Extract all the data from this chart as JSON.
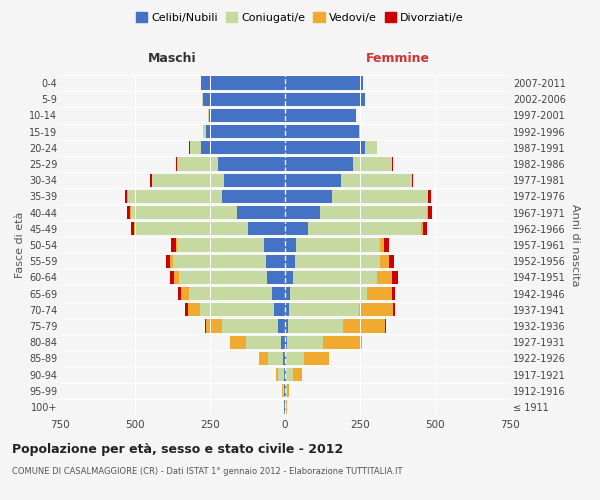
{
  "age_groups": [
    "100+",
    "95-99",
    "90-94",
    "85-89",
    "80-84",
    "75-79",
    "70-74",
    "65-69",
    "60-64",
    "55-59",
    "50-54",
    "45-49",
    "40-44",
    "35-39",
    "30-34",
    "25-29",
    "20-24",
    "15-19",
    "10-14",
    "5-9",
    "0-4"
  ],
  "birth_years": [
    "≤ 1911",
    "1912-1916",
    "1917-1921",
    "1922-1926",
    "1927-1931",
    "1932-1936",
    "1937-1941",
    "1942-1946",
    "1947-1951",
    "1952-1956",
    "1957-1961",
    "1962-1966",
    "1967-1971",
    "1972-1976",
    "1977-1981",
    "1982-1986",
    "1987-1991",
    "1992-1996",
    "1997-2001",
    "2002-2006",
    "2007-2011"
  ],
  "male_celibi": [
    2,
    3,
    5,
    8,
    15,
    25,
    38,
    45,
    60,
    65,
    70,
    125,
    160,
    210,
    205,
    225,
    280,
    265,
    255,
    275,
    280
  ],
  "male_coniugati": [
    2,
    5,
    18,
    50,
    115,
    185,
    245,
    275,
    295,
    310,
    290,
    375,
    355,
    315,
    240,
    135,
    38,
    8,
    2,
    1,
    1
  ],
  "male_vedovi": [
    0,
    2,
    8,
    28,
    52,
    52,
    42,
    28,
    14,
    8,
    5,
    3,
    2,
    1,
    0,
    0,
    0,
    0,
    0,
    0,
    0
  ],
  "male_divorziati": [
    0,
    0,
    0,
    0,
    0,
    5,
    8,
    8,
    14,
    14,
    14,
    12,
    10,
    7,
    5,
    3,
    1,
    0,
    0,
    0,
    0
  ],
  "female_celibi": [
    1,
    2,
    3,
    4,
    7,
    9,
    13,
    18,
    28,
    33,
    38,
    78,
    118,
    155,
    185,
    225,
    265,
    245,
    235,
    265,
    260
  ],
  "female_coniugati": [
    1,
    4,
    22,
    58,
    120,
    185,
    235,
    255,
    278,
    285,
    278,
    375,
    355,
    320,
    238,
    132,
    42,
    8,
    2,
    1,
    1
  ],
  "female_vedovi": [
    3,
    8,
    33,
    85,
    128,
    138,
    112,
    84,
    52,
    28,
    14,
    8,
    5,
    3,
    1,
    0,
    0,
    0,
    0,
    0,
    0
  ],
  "female_divorziati": [
    0,
    0,
    0,
    0,
    2,
    4,
    8,
    10,
    18,
    18,
    18,
    14,
    11,
    7,
    4,
    2,
    1,
    0,
    0,
    0,
    0
  ],
  "colors": {
    "celibi": "#4472C4",
    "coniugati": "#c5d9a0",
    "vedovi": "#f0aa30",
    "divorziati": "#cc0000"
  },
  "xlim": 750,
  "title": "Popolazione per età, sesso e stato civile - 2012",
  "subtitle": "COMUNE DI CASALMAGGIORE (CR) - Dati ISTAT 1° gennaio 2012 - Elaborazione TUTTITALIA.IT",
  "ylabel_left": "Fasce di età",
  "ylabel_right": "Anni di nascita",
  "xlabel_left": "Maschi",
  "xlabel_right": "Femmine",
  "bg_color": "#f5f5f5"
}
